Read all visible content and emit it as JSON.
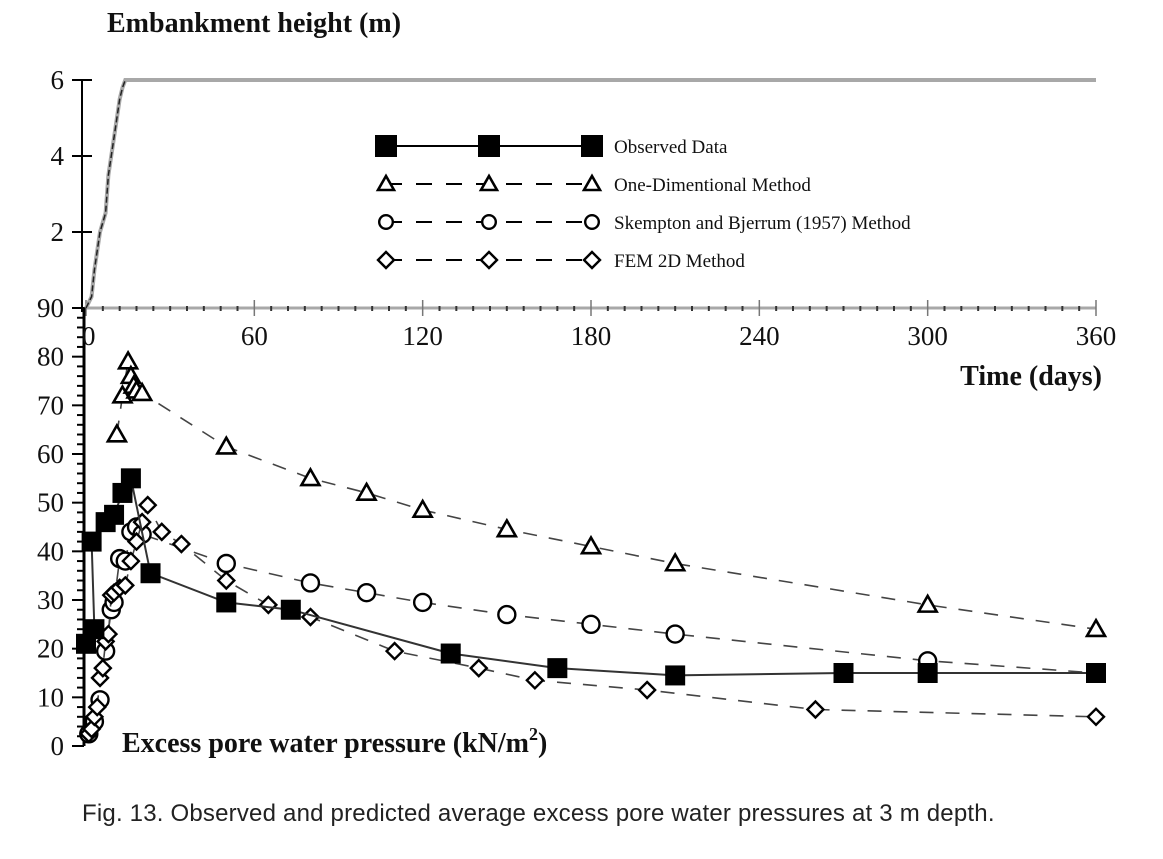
{
  "caption": "Fig. 13. Observed and predicted average excess pore water pressures at 3 m depth.",
  "chart_data": [
    {
      "type": "line",
      "title": "Embankment height (m)",
      "xlabel": "",
      "ylabel": "Embankment height (m)",
      "xlim": [
        0,
        360
      ],
      "ylim": [
        0,
        6
      ],
      "yticks": [
        0,
        2,
        4,
        6
      ],
      "ytick_labels": [
        "0",
        "2",
        "4",
        "6"
      ],
      "grid": false,
      "color": "#a8a8a8",
      "series": [
        {
          "name": "Embankment height",
          "x": [
            0,
            2,
            3,
            5,
            7,
            8,
            10,
            12,
            13,
            14,
            15,
            360
          ],
          "y": [
            0,
            0.3,
            1.0,
            2.0,
            2.5,
            3.5,
            4.5,
            5.5,
            5.8,
            6.0,
            6.0,
            6.0
          ]
        }
      ]
    },
    {
      "type": "line",
      "title": "",
      "xlabel": "Time (days)",
      "ylabel": "Excess pore water pressure (kN/m²)",
      "ylabel_main": "Excess pore water pressure (kN/m",
      "ylabel_sup": "2",
      "ylabel_end": ")",
      "xlim": [
        0,
        360
      ],
      "ylim": [
        0,
        90
      ],
      "xticks": [
        0,
        60,
        120,
        180,
        240,
        300,
        360
      ],
      "xtick_labels": [
        "0",
        "60",
        "120",
        "180",
        "240",
        "300",
        "360"
      ],
      "yticks": [
        0,
        10,
        20,
        30,
        40,
        50,
        60,
        70,
        80,
        90
      ],
      "ytick_labels": [
        "0",
        "10",
        "20",
        "30",
        "40",
        "50",
        "60",
        "70",
        "80",
        "90"
      ],
      "grid": false,
      "legend_position": "top-center",
      "series": [
        {
          "name": "Observed Data",
          "marker": "square-filled",
          "line": "solid",
          "x": [
            0,
            3,
            2,
            7,
            10,
            13,
            16,
            23,
            50,
            73,
            130,
            168,
            210,
            270,
            300,
            360
          ],
          "y": [
            21,
            24,
            42,
            46,
            47.5,
            52,
            55,
            35.5,
            29.5,
            28,
            19,
            16,
            14.5,
            15,
            15,
            15
          ]
        },
        {
          "name": "One-Dimentional Method",
          "marker": "triangle-open",
          "line": "dashed",
          "x": [
            11,
            13,
            15,
            16,
            17,
            18,
            20,
            50,
            80,
            100,
            120,
            150,
            180,
            210,
            300,
            360
          ],
          "y": [
            64,
            72,
            79,
            76,
            74,
            73,
            72.5,
            61.5,
            55,
            52,
            48.5,
            44.5,
            41,
            37.5,
            29,
            24
          ]
        },
        {
          "name": "Skempton and Bjerrum (1957) Method",
          "marker": "circle-open",
          "line": "dashed",
          "x": [
            1,
            3,
            5,
            7,
            9,
            10,
            12,
            14,
            16,
            18,
            20,
            50,
            80,
            100,
            120,
            150,
            180,
            210,
            300,
            360
          ],
          "y": [
            2.5,
            5,
            9.5,
            19.5,
            28,
            29.5,
            38.5,
            38,
            44,
            45,
            43.5,
            37.5,
            33.5,
            31.5,
            29.5,
            27,
            25,
            23,
            17.5,
            15
          ]
        },
        {
          "name": "FEM 2D Method",
          "marker": "diamond-open",
          "line": "dashed",
          "x": [
            1,
            2,
            3,
            4,
            5,
            6,
            7,
            8,
            9,
            10,
            12,
            14,
            16,
            18,
            20,
            22,
            27,
            34,
            50,
            65,
            80,
            110,
            140,
            160,
            200,
            260,
            360
          ],
          "y": [
            2.5,
            3.5,
            6,
            8,
            14,
            16,
            21.5,
            23,
            31,
            31.5,
            32.5,
            33,
            38,
            42,
            46,
            49.5,
            44,
            41.5,
            34,
            29,
            26.5,
            19.5,
            16,
            13.5,
            11.5,
            7.5,
            6
          ]
        }
      ]
    }
  ]
}
